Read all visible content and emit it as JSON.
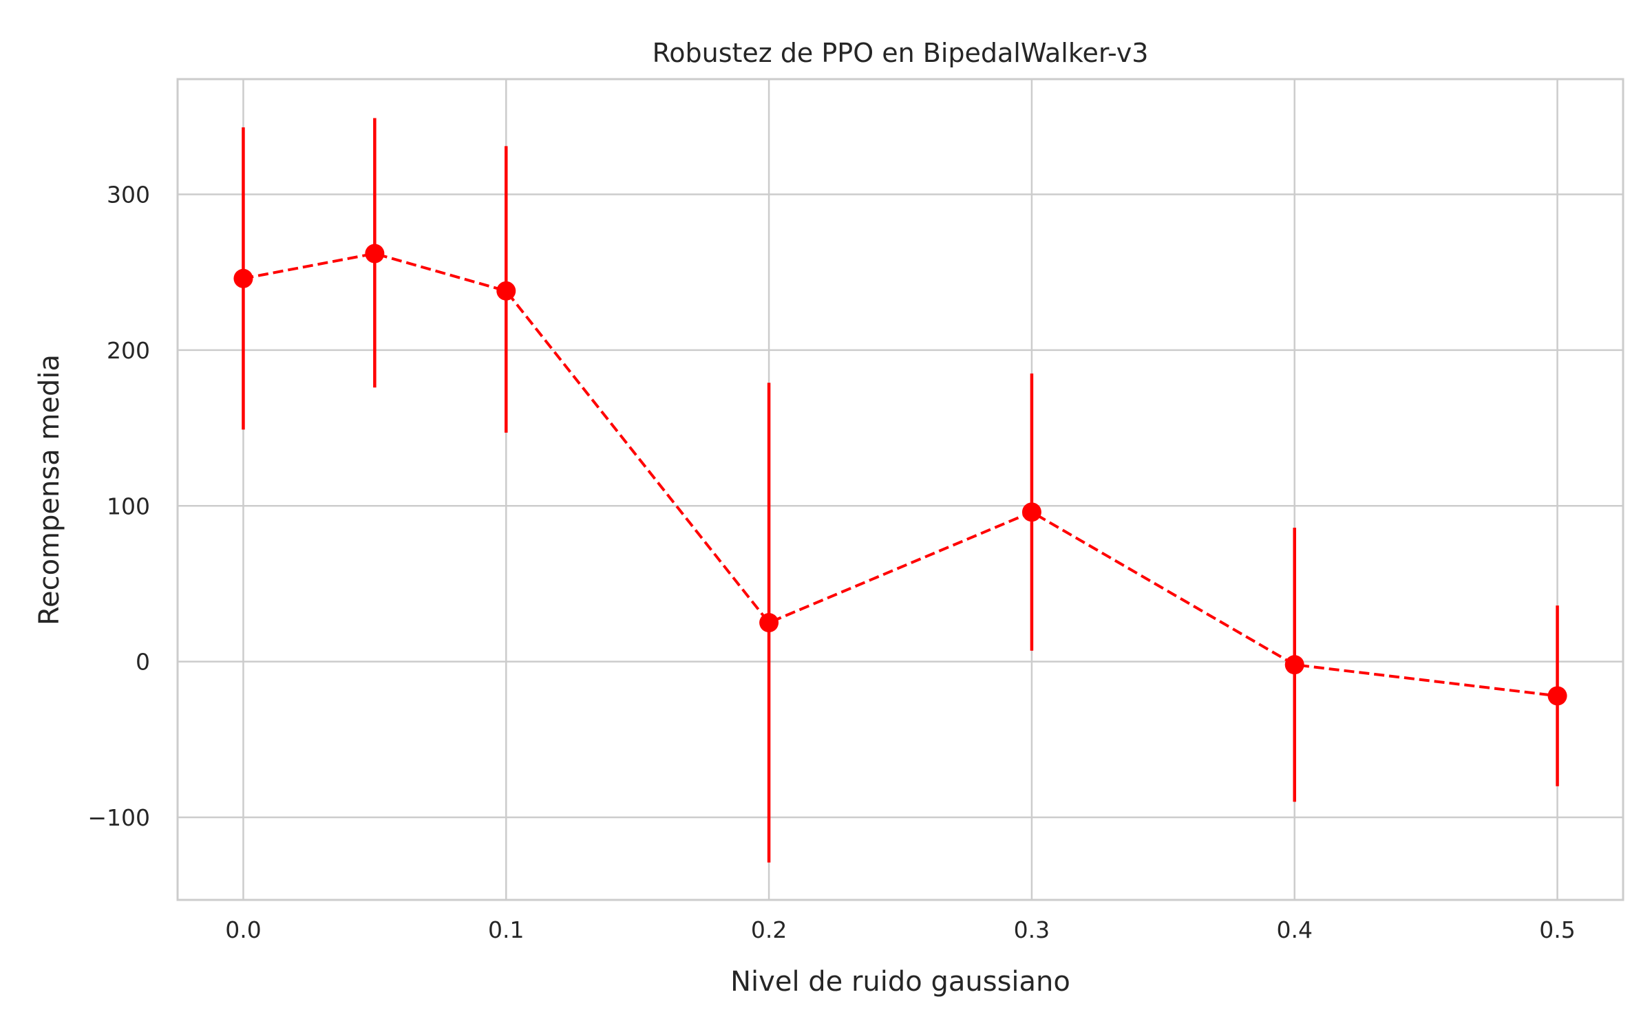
{
  "chart_data": {
    "type": "line",
    "title": "Robustez de PPO en BipedalWalker-v3",
    "xlabel": "Nivel de ruido gaussiano",
    "ylabel": "Recompensa media",
    "x": [
      0.0,
      0.05,
      0.1,
      0.2,
      0.3,
      0.4,
      0.5
    ],
    "series": [
      {
        "values": [
          246,
          262,
          238,
          25,
          96,
          -2,
          -22
        ],
        "error_low": [
          149,
          176,
          147,
          -129,
          7,
          -90,
          -80
        ],
        "error_high": [
          343,
          349,
          331,
          179,
          185,
          86,
          36
        ],
        "color": "#ff0000",
        "line_style": "dashed",
        "marker": "circle"
      }
    ],
    "xlim": [
      -0.025,
      0.525
    ],
    "ylim": [
      -153,
      374
    ],
    "xticks": [
      0.0,
      0.1,
      0.2,
      0.3,
      0.4,
      0.5
    ],
    "xtick_labels": [
      "0.0",
      "0.1",
      "0.2",
      "0.3",
      "0.4",
      "0.5"
    ],
    "yticks": [
      -100,
      0,
      100,
      200,
      300
    ],
    "ytick_labels": [
      "−100",
      "0",
      "100",
      "200",
      "300"
    ],
    "grid": true
  }
}
